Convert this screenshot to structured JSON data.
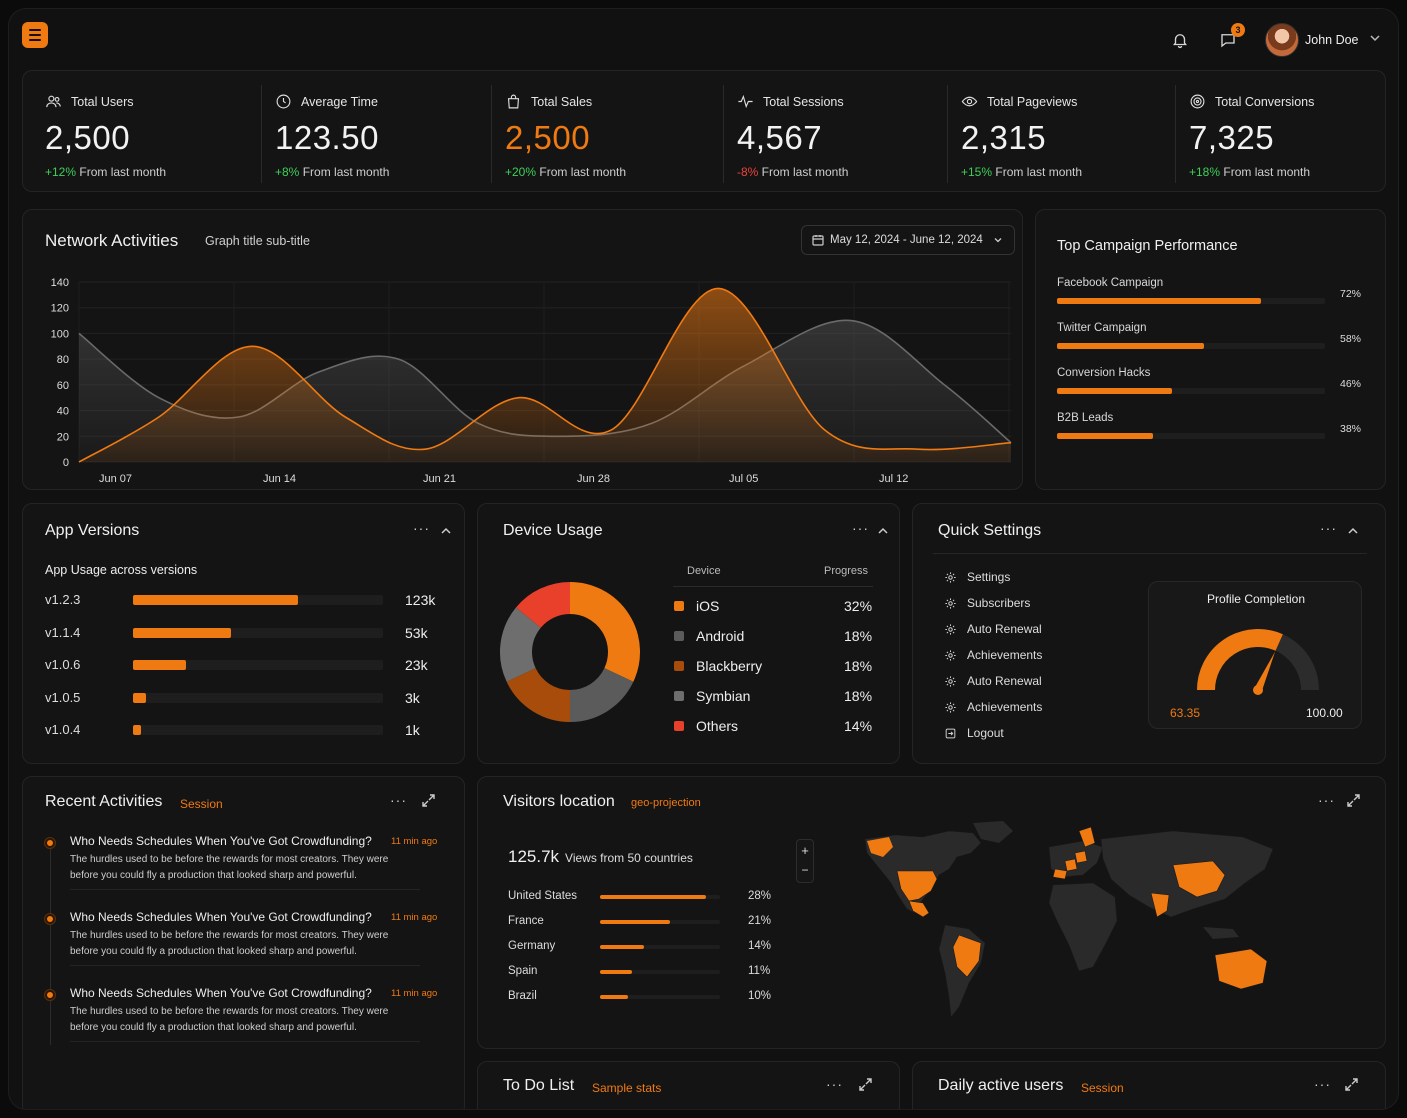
{
  "header": {
    "notifications_count": "3",
    "user_name": "John Doe"
  },
  "stats": [
    {
      "label": "Total Users",
      "value": "2,500",
      "delta": "+12%",
      "delta_suffix": " From last month",
      "trend": "up",
      "icon": "users-icon"
    },
    {
      "label": "Average Time",
      "value": "123.50",
      "delta": "+8%",
      "delta_suffix": " From last month",
      "trend": "up",
      "icon": "clock-icon"
    },
    {
      "label": "Total Sales",
      "value": "2,500",
      "delta": "+20%",
      "delta_suffix": " From last month",
      "trend": "up",
      "icon": "shopping-bag-icon"
    },
    {
      "label": "Total Sessions",
      "value": "4,567",
      "delta": "-8%",
      "delta_suffix": " From last month",
      "trend": "down",
      "icon": "activity-icon"
    },
    {
      "label": "Total Pageviews",
      "value": "2,315",
      "delta": "+15%",
      "delta_suffix": " From last month",
      "trend": "up",
      "icon": "eye-icon"
    },
    {
      "label": "Total Conversions",
      "value": "7,325",
      "delta": "+18%",
      "delta_suffix": " From last month",
      "trend": "up",
      "icon": "target-icon"
    }
  ],
  "network": {
    "title": "Network Activities",
    "subtitle": "Graph title sub-title",
    "date_range": "May 12, 2024 - June 12, 2024"
  },
  "chart_data": {
    "type": "area",
    "x": [
      "Jun 07",
      "Jun 14",
      "Jun 21",
      "Jun 28",
      "Jul 05",
      "Jul 12"
    ],
    "y_ticks": [
      0,
      20,
      40,
      60,
      80,
      100,
      120,
      140
    ],
    "ylim": [
      0,
      140
    ],
    "series": [
      {
        "color": "#f07a12",
        "points": [
          [
            0,
            0
          ],
          [
            0.6,
            35
          ],
          [
            1.3,
            90
          ],
          [
            2.0,
            35
          ],
          [
            2.6,
            10
          ],
          [
            3.3,
            50
          ],
          [
            4.0,
            25
          ],
          [
            4.8,
            135
          ],
          [
            5.6,
            25
          ],
          [
            6.3,
            10
          ],
          [
            7.0,
            15
          ]
        ]
      },
      {
        "color": "#5a5a5a",
        "points": [
          [
            0,
            100
          ],
          [
            0.6,
            50
          ],
          [
            1.2,
            35
          ],
          [
            1.8,
            70
          ],
          [
            2.4,
            80
          ],
          [
            3.0,
            30
          ],
          [
            3.6,
            20
          ],
          [
            4.3,
            30
          ],
          [
            5.0,
            75
          ],
          [
            5.8,
            110
          ],
          [
            6.5,
            60
          ],
          [
            7.0,
            15
          ]
        ]
      }
    ]
  },
  "campaigns": {
    "title": "Top Campaign Performance",
    "items": [
      {
        "label": "Facebook Campaign",
        "percent": "72%",
        "value": 0.76
      },
      {
        "label": "Twitter Campaign",
        "percent": "58%",
        "value": 0.55
      },
      {
        "label": "Conversion Hacks",
        "percent": "46%",
        "value": 0.43
      },
      {
        "label": "B2B Leads",
        "percent": "38%",
        "value": 0.36
      }
    ]
  },
  "app_versions": {
    "title": "App Versions",
    "subtitle": "App Usage across versions",
    "items": [
      {
        "label": "v1.2.3",
        "count": "123k",
        "value": 0.66
      },
      {
        "label": "v1.1.4",
        "count": "53k",
        "value": 0.39
      },
      {
        "label": "v1.0.6",
        "count": "23k",
        "value": 0.21
      },
      {
        "label": "v1.0.5",
        "count": "3k",
        "value": 0.05
      },
      {
        "label": "v1.0.4",
        "count": "1k",
        "value": 0.03
      }
    ]
  },
  "device_usage": {
    "title": "Device Usage",
    "col_device": "Device",
    "col_progress": "Progress",
    "items": [
      {
        "label": "iOS",
        "percent": "32%",
        "value": 32,
        "color": "#f07a12"
      },
      {
        "label": "Android",
        "percent": "18%",
        "value": 18,
        "color": "#5b5b5b"
      },
      {
        "label": "Blackberry",
        "percent": "18%",
        "value": 18,
        "color": "#a84c0c"
      },
      {
        "label": "Symbian",
        "percent": "18%",
        "value": 18,
        "color": "#6e6e6e"
      },
      {
        "label": "Others",
        "percent": "14%",
        "value": 14,
        "color": "#e8402a"
      }
    ]
  },
  "quick_settings": {
    "title": "Quick Settings",
    "items": [
      {
        "label": "Settings",
        "icon": "gear-icon"
      },
      {
        "label": "Subscribers",
        "icon": "gear-icon"
      },
      {
        "label": "Auto Renewal",
        "icon": "gear-icon"
      },
      {
        "label": "Achievements",
        "icon": "gear-icon"
      },
      {
        "label": "Auto Renewal",
        "icon": "gear-icon"
      },
      {
        "label": "Achievements",
        "icon": "gear-icon"
      },
      {
        "label": "Logout",
        "icon": "logout-icon"
      }
    ],
    "profile": {
      "title": "Profile Completion",
      "current": "63.35",
      "max": "100.00",
      "fraction": 0.6335
    }
  },
  "recent": {
    "title": "Recent Activities",
    "tag": "Session",
    "items": [
      {
        "title": "Who Needs Schedules When You've Got Crowdfunding?",
        "time": "11 min ago",
        "body1": "The hurdles used to be before the rewards for most creators. They were",
        "body2": "before you could fly a production that looked sharp and powerful."
      },
      {
        "title": "Who Needs Schedules When You've Got Crowdfunding?",
        "time": "11 min ago",
        "body1": "The hurdles used to be before the rewards for most creators. They were",
        "body2": "before you could fly a production that looked sharp and powerful."
      },
      {
        "title": "Who Needs Schedules When You've Got Crowdfunding?",
        "time": "11 min ago",
        "body1": "The hurdles used to be before the rewards for most creators. They were",
        "body2": "before you could fly a production that looked sharp and powerful."
      }
    ]
  },
  "visitors": {
    "title": "Visitors location",
    "tag": "geo-projection",
    "total": "125.7k",
    "total_suffix": "Views from 50 countries",
    "zoom_in": "+",
    "zoom_out": "−",
    "countries": [
      {
        "label": "United States",
        "percent": "28%",
        "value": 0.88
      },
      {
        "label": "France",
        "percent": "21%",
        "value": 0.58
      },
      {
        "label": "Germany",
        "percent": "14%",
        "value": 0.37
      },
      {
        "label": "Spain",
        "percent": "11%",
        "value": 0.27
      },
      {
        "label": "Brazil",
        "percent": "10%",
        "value": 0.23
      }
    ]
  },
  "todo": {
    "title": "To Do List",
    "tag": "Sample stats"
  },
  "daily": {
    "title": "Daily active users",
    "tag": "Session"
  },
  "colors": {
    "accent": "#f07a12",
    "positive": "#3ecf5a",
    "negative": "#e8453c",
    "panel": "#141414"
  }
}
